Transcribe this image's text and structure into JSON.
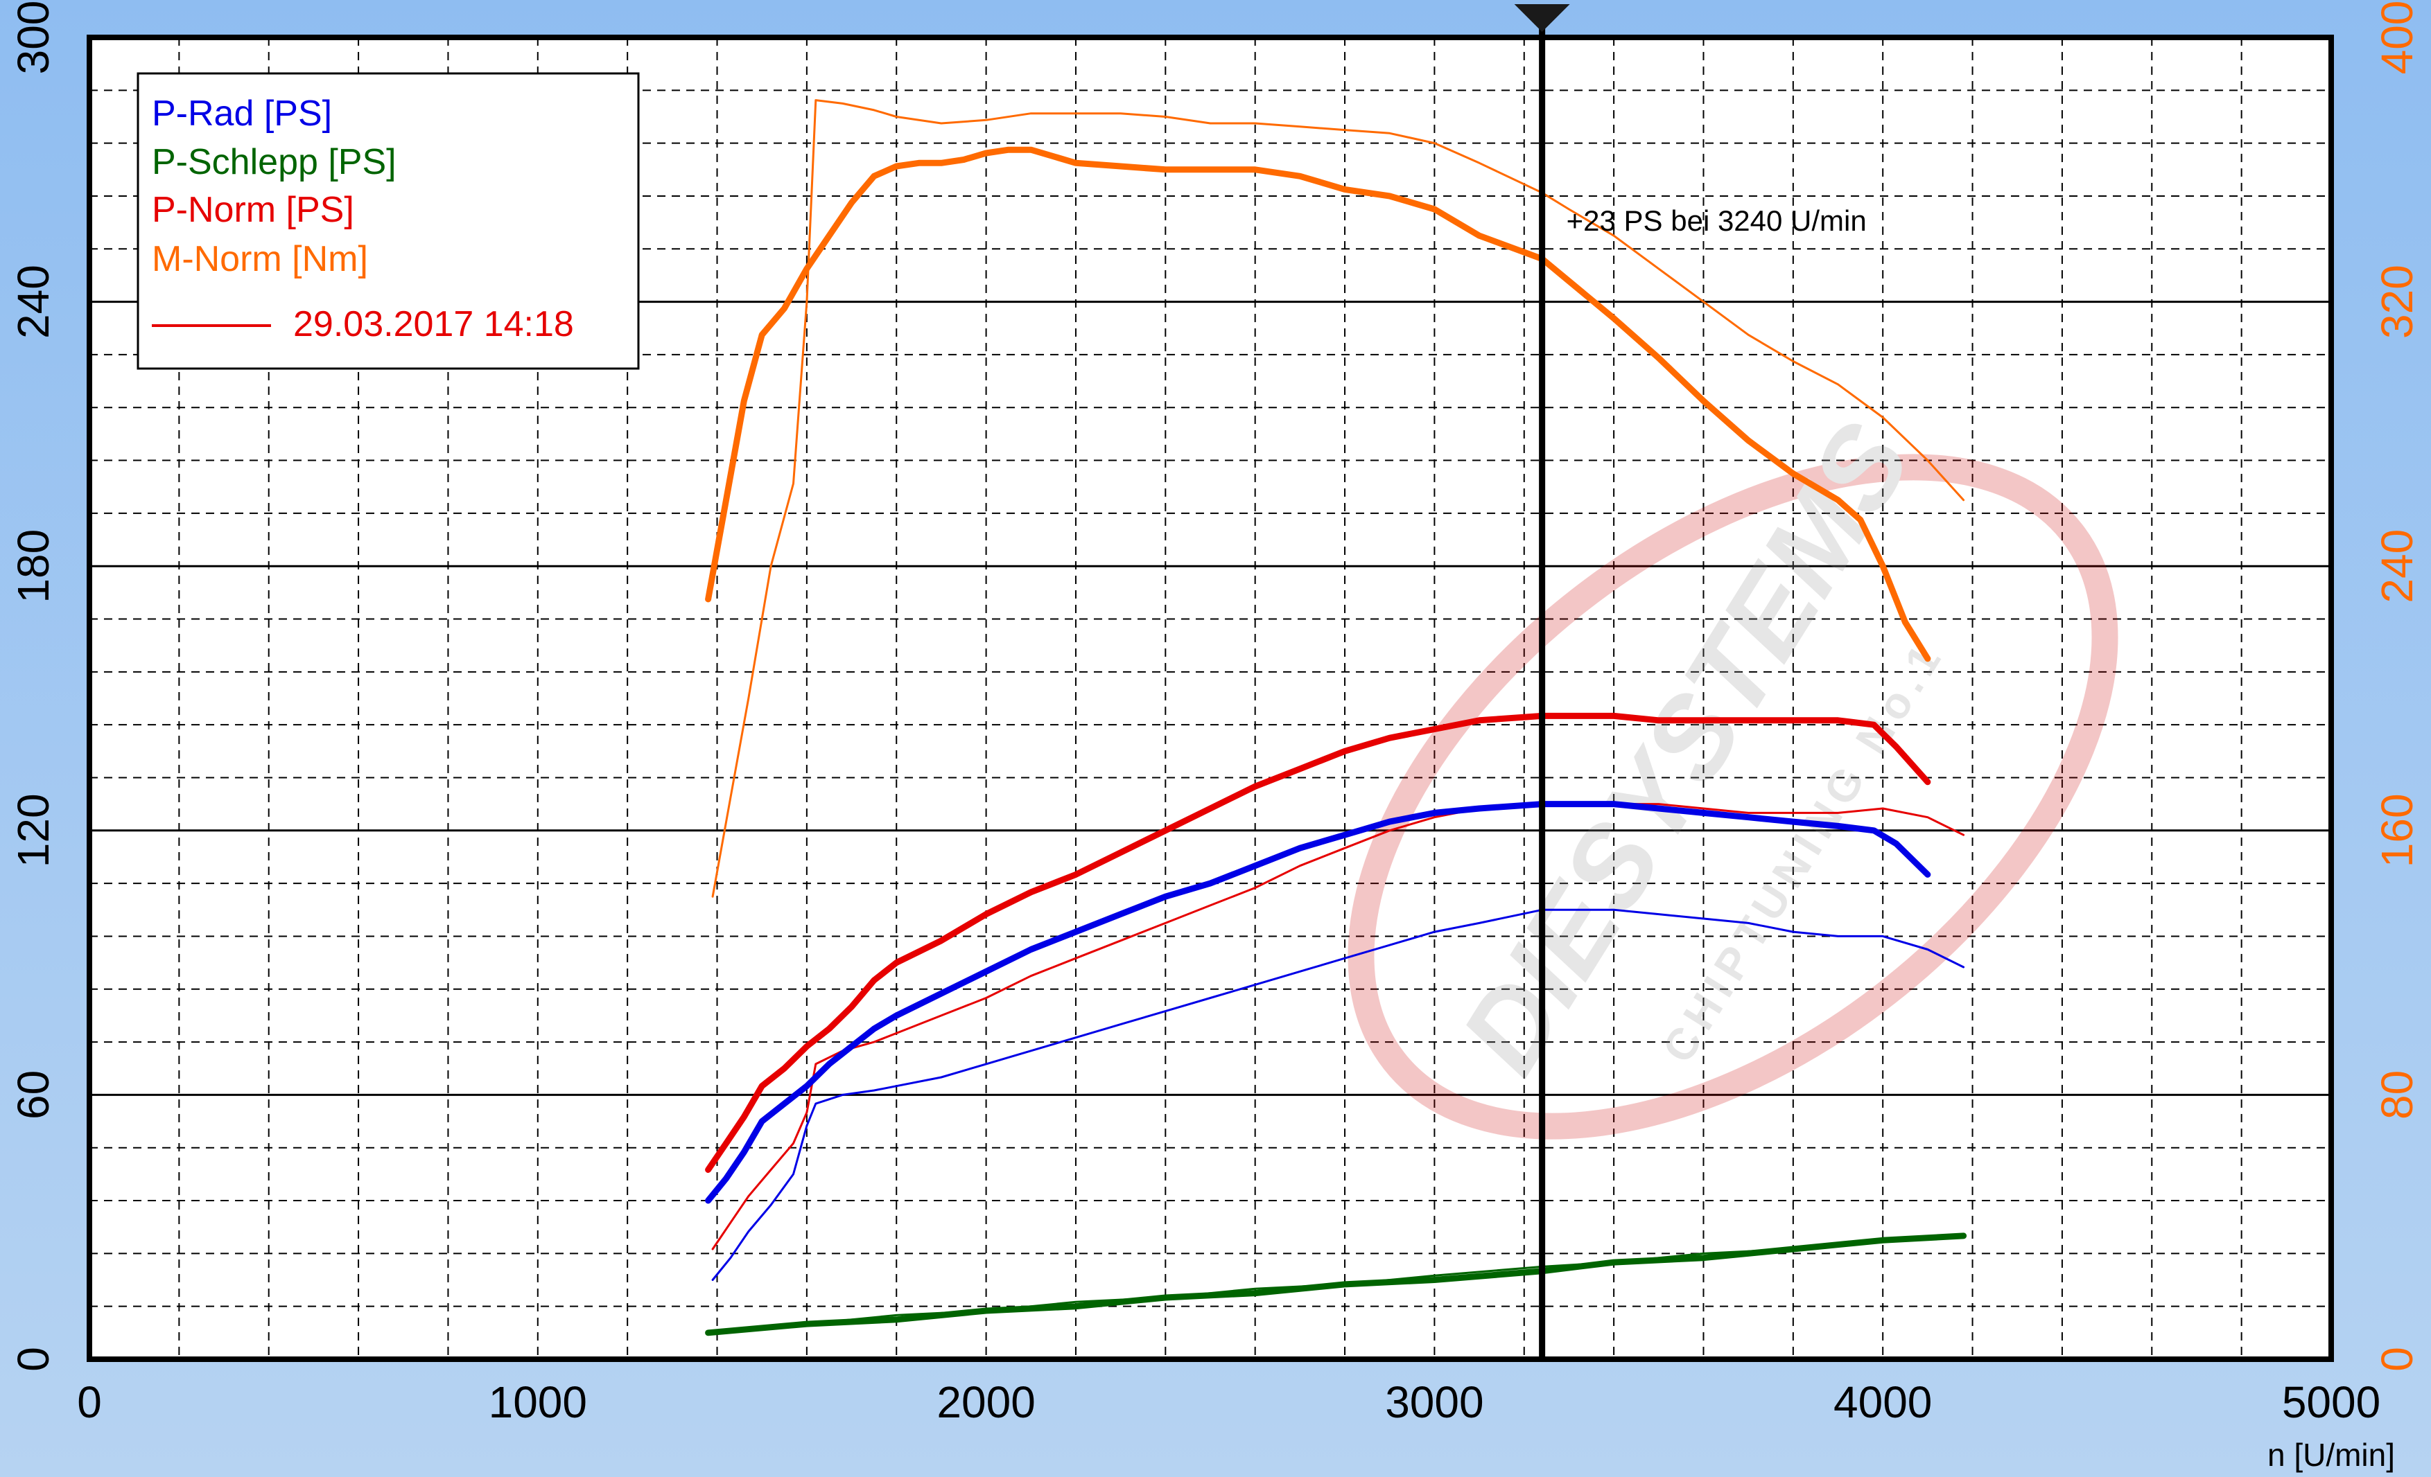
{
  "chart_data": {
    "type": "line",
    "x_axis": {
      "label": "n [U/min]",
      "range": [
        0,
        5000
      ],
      "ticks": [
        0,
        1000,
        2000,
        3000,
        4000,
        5000
      ],
      "tick_labels": [
        "0",
        "1000",
        "2000",
        "3000",
        "4000",
        "5000"
      ]
    },
    "y_axis_left": {
      "range": [
        0,
        300
      ],
      "ticks": [
        0,
        60,
        120,
        180,
        240,
        300
      ],
      "tick_labels": [
        "0",
        "60",
        "120",
        "180",
        "240",
        "300"
      ],
      "color": "#000000"
    },
    "y_axis_right": {
      "range": [
        0,
        400
      ],
      "ticks": [
        0,
        80,
        160,
        240,
        320,
        400
      ],
      "tick_labels": [
        "0",
        "80",
        "160",
        "240",
        "320",
        "400"
      ],
      "color": "#ff6a00"
    },
    "grid": true,
    "legend": {
      "placement": "top-left",
      "entries": [
        {
          "label": "P-Rad [PS]",
          "color": "#0000e6"
        },
        {
          "label": "P-Schlepp [PS]",
          "color": "#006400"
        },
        {
          "label": "P-Norm [PS]",
          "color": "#e60000"
        },
        {
          "label": "M-Norm [Nm]",
          "color": "#ff6a00"
        }
      ],
      "comparison_entry": {
        "label": "29.03.2017 14:18",
        "color": "#e60000"
      }
    },
    "annotation": {
      "text": "+23 PS bei 3240 U/min",
      "x": 3240
    },
    "marker_line": {
      "x": 3240,
      "color": "#000000"
    },
    "watermark": {
      "line1": "DIESYSTEMS",
      "line2": "CHIPTUNING No.1",
      "color": "#cc0000"
    },
    "series": [
      {
        "name": "M-Norm [Nm]",
        "axis": "right",
        "style": "thick",
        "color": "#ff6a00",
        "points": [
          [
            1380,
            230
          ],
          [
            1420,
            260
          ],
          [
            1460,
            290
          ],
          [
            1500,
            310
          ],
          [
            1550,
            318
          ],
          [
            1600,
            330
          ],
          [
            1650,
            340
          ],
          [
            1700,
            350
          ],
          [
            1750,
            358
          ],
          [
            1800,
            361
          ],
          [
            1850,
            362
          ],
          [
            1900,
            362
          ],
          [
            1950,
            363
          ],
          [
            2000,
            365
          ],
          [
            2050,
            366
          ],
          [
            2100,
            366
          ],
          [
            2150,
            364
          ],
          [
            2200,
            362
          ],
          [
            2300,
            361
          ],
          [
            2400,
            360
          ],
          [
            2500,
            360
          ],
          [
            2600,
            360
          ],
          [
            2700,
            358
          ],
          [
            2800,
            354
          ],
          [
            2900,
            352
          ],
          [
            3000,
            348
          ],
          [
            3100,
            340
          ],
          [
            3240,
            333
          ],
          [
            3400,
            315
          ],
          [
            3500,
            303
          ],
          [
            3600,
            290
          ],
          [
            3700,
            278
          ],
          [
            3800,
            268
          ],
          [
            3900,
            260
          ],
          [
            3950,
            254
          ],
          [
            4000,
            240
          ],
          [
            4050,
            223
          ],
          [
            4100,
            212
          ]
        ]
      },
      {
        "name": "M-Norm [Nm]",
        "axis": "right",
        "style": "thin",
        "color": "#ff6a00",
        "points": [
          [
            1390,
            140
          ],
          [
            1430,
            170
          ],
          [
            1470,
            200
          ],
          [
            1520,
            240
          ],
          [
            1570,
            265
          ],
          [
            1600,
            320
          ],
          [
            1620,
            381
          ],
          [
            1680,
            380
          ],
          [
            1750,
            378
          ],
          [
            1800,
            376
          ],
          [
            1900,
            374
          ],
          [
            2000,
            375
          ],
          [
            2100,
            377
          ],
          [
            2200,
            377
          ],
          [
            2300,
            377
          ],
          [
            2400,
            376
          ],
          [
            2500,
            374
          ],
          [
            2600,
            374
          ],
          [
            2700,
            373
          ],
          [
            2800,
            372
          ],
          [
            2900,
            371
          ],
          [
            3000,
            368
          ],
          [
            3100,
            362
          ],
          [
            3240,
            353
          ],
          [
            3300,
            348
          ],
          [
            3400,
            340
          ],
          [
            3500,
            330
          ],
          [
            3600,
            320
          ],
          [
            3700,
            310
          ],
          [
            3800,
            302
          ],
          [
            3900,
            295
          ],
          [
            4000,
            285
          ],
          [
            4100,
            272
          ],
          [
            4180,
            260
          ]
        ]
      },
      {
        "name": "P-Norm [PS]",
        "axis": "left",
        "style": "thick",
        "color": "#e60000",
        "points": [
          [
            1380,
            43
          ],
          [
            1420,
            49
          ],
          [
            1460,
            55
          ],
          [
            1500,
            62
          ],
          [
            1550,
            66
          ],
          [
            1600,
            71
          ],
          [
            1650,
            75
          ],
          [
            1700,
            80
          ],
          [
            1750,
            86
          ],
          [
            1800,
            90
          ],
          [
            1900,
            95
          ],
          [
            2000,
            101
          ],
          [
            2100,
            106
          ],
          [
            2200,
            110
          ],
          [
            2300,
            115
          ],
          [
            2400,
            120
          ],
          [
            2500,
            125
          ],
          [
            2600,
            130
          ],
          [
            2700,
            134
          ],
          [
            2800,
            138
          ],
          [
            2900,
            141
          ],
          [
            3000,
            143
          ],
          [
            3100,
            145
          ],
          [
            3240,
            146
          ],
          [
            3400,
            146
          ],
          [
            3500,
            145
          ],
          [
            3600,
            145
          ],
          [
            3700,
            145
          ],
          [
            3800,
            145
          ],
          [
            3900,
            145
          ],
          [
            3980,
            144
          ],
          [
            4030,
            139
          ],
          [
            4100,
            131
          ]
        ]
      },
      {
        "name": "P-Norm [PS]",
        "axis": "left",
        "style": "thin",
        "color": "#e60000",
        "points": [
          [
            1390,
            25
          ],
          [
            1430,
            31
          ],
          [
            1470,
            37
          ],
          [
            1520,
            43
          ],
          [
            1570,
            49
          ],
          [
            1600,
            56
          ],
          [
            1620,
            67
          ],
          [
            1680,
            70
          ],
          [
            1750,
            72
          ],
          [
            1800,
            74
          ],
          [
            1900,
            78
          ],
          [
            2000,
            82
          ],
          [
            2100,
            87
          ],
          [
            2200,
            91
          ],
          [
            2300,
            95
          ],
          [
            2400,
            99
          ],
          [
            2500,
            103
          ],
          [
            2600,
            107
          ],
          [
            2700,
            112
          ],
          [
            2800,
            116
          ],
          [
            2900,
            120
          ],
          [
            3000,
            123
          ],
          [
            3100,
            125
          ],
          [
            3240,
            126
          ],
          [
            3400,
            126
          ],
          [
            3500,
            126
          ],
          [
            3600,
            125
          ],
          [
            3700,
            124
          ],
          [
            3800,
            124
          ],
          [
            3900,
            124
          ],
          [
            4000,
            125
          ],
          [
            4100,
            123
          ],
          [
            4180,
            119
          ]
        ]
      },
      {
        "name": "P-Rad [PS]",
        "axis": "left",
        "style": "thick",
        "color": "#0000e6",
        "points": [
          [
            1380,
            36
          ],
          [
            1420,
            41
          ],
          [
            1460,
            47
          ],
          [
            1500,
            54
          ],
          [
            1550,
            58
          ],
          [
            1600,
            62
          ],
          [
            1650,
            67
          ],
          [
            1700,
            71
          ],
          [
            1750,
            75
          ],
          [
            1800,
            78
          ],
          [
            1900,
            83
          ],
          [
            2000,
            88
          ],
          [
            2100,
            93
          ],
          [
            2200,
            97
          ],
          [
            2300,
            101
          ],
          [
            2400,
            105
          ],
          [
            2500,
            108
          ],
          [
            2600,
            112
          ],
          [
            2700,
            116
          ],
          [
            2800,
            119
          ],
          [
            2900,
            122
          ],
          [
            3000,
            124
          ],
          [
            3100,
            125
          ],
          [
            3240,
            126
          ],
          [
            3400,
            126
          ],
          [
            3500,
            125
          ],
          [
            3600,
            124
          ],
          [
            3700,
            123
          ],
          [
            3800,
            122
          ],
          [
            3900,
            121
          ],
          [
            3980,
            120
          ],
          [
            4030,
            117
          ],
          [
            4100,
            110
          ]
        ]
      },
      {
        "name": "P-Rad [PS]",
        "axis": "left",
        "style": "thin",
        "color": "#0000e6",
        "points": [
          [
            1390,
            18
          ],
          [
            1430,
            23
          ],
          [
            1470,
            29
          ],
          [
            1520,
            35
          ],
          [
            1570,
            42
          ],
          [
            1600,
            53
          ],
          [
            1620,
            58
          ],
          [
            1680,
            60
          ],
          [
            1750,
            61
          ],
          [
            1800,
            62
          ],
          [
            1900,
            64
          ],
          [
            2000,
            67
          ],
          [
            2100,
            70
          ],
          [
            2200,
            73
          ],
          [
            2300,
            76
          ],
          [
            2400,
            79
          ],
          [
            2500,
            82
          ],
          [
            2600,
            85
          ],
          [
            2700,
            88
          ],
          [
            2800,
            91
          ],
          [
            2900,
            94
          ],
          [
            3000,
            97
          ],
          [
            3100,
            99
          ],
          [
            3240,
            102
          ],
          [
            3400,
            102
          ],
          [
            3500,
            101
          ],
          [
            3600,
            100
          ],
          [
            3700,
            99
          ],
          [
            3800,
            97
          ],
          [
            3900,
            96
          ],
          [
            4000,
            96
          ],
          [
            4100,
            93
          ],
          [
            4180,
            89
          ]
        ]
      },
      {
        "name": "P-Schlepp [PS]",
        "axis": "left",
        "style": "thick",
        "color": "#006400",
        "points": [
          [
            1380,
            6
          ],
          [
            1600,
            8
          ],
          [
            1800,
            9
          ],
          [
            2000,
            11
          ],
          [
            2200,
            12
          ],
          [
            2400,
            14
          ],
          [
            2600,
            15
          ],
          [
            2800,
            17
          ],
          [
            3000,
            18
          ],
          [
            3240,
            20
          ],
          [
            3400,
            22
          ],
          [
            3600,
            23
          ],
          [
            3800,
            25
          ],
          [
            4000,
            27
          ],
          [
            4180,
            28
          ]
        ]
      },
      {
        "name": "P-Schlepp [PS]",
        "axis": "left",
        "style": "thin",
        "color": "#006400",
        "points": [
          [
            1380,
            6
          ],
          [
            1600,
            8
          ],
          [
            1800,
            10
          ],
          [
            2000,
            11
          ],
          [
            2200,
            13
          ],
          [
            2400,
            14
          ],
          [
            2600,
            16
          ],
          [
            2800,
            17
          ],
          [
            3000,
            19
          ],
          [
            3240,
            21
          ],
          [
            3400,
            22
          ],
          [
            3600,
            24
          ],
          [
            3800,
            25
          ],
          [
            4000,
            27
          ],
          [
            4180,
            28
          ]
        ]
      }
    ]
  }
}
